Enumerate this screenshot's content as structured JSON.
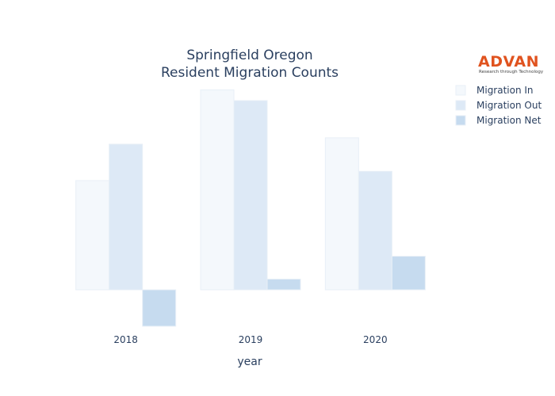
{
  "chart_data": {
    "type": "bar",
    "title_lines": [
      "Springfield Oregon",
      "Resident Migration Counts"
    ],
    "xlabel": "year",
    "ylabel": "",
    "categories": [
      "2018",
      "2019",
      "2020"
    ],
    "series": [
      {
        "name": "Migration In",
        "color": "#f4f8fc",
        "values": [
          1530,
          2800,
          2130
        ]
      },
      {
        "name": "Migration Out",
        "color": "#dde9f6",
        "values": [
          2040,
          2650,
          1660
        ]
      },
      {
        "name": "Migration Net",
        "color": "#c6dbef",
        "values": [
          -510,
          150,
          470
        ]
      }
    ],
    "ylim": [
      -600,
      2950
    ],
    "grid": false,
    "legend_position": "top-right"
  },
  "logo": {
    "name": "ADVAN",
    "tagline": "Research through Technology"
  }
}
